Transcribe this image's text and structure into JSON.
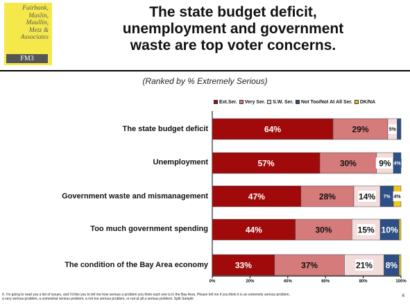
{
  "logo": {
    "lines": [
      "Fairbank,",
      "Maslin,",
      "Maullin,",
      "Metz &",
      "Associates"
    ],
    "tag": "FM3"
  },
  "title_lines": [
    "The state budget deficit,",
    "unemployment and government",
    "waste are top voter concerns."
  ],
  "subtitle": "(Ranked by % Extremely Serious)",
  "colors": {
    "ext_ser": "#a00a0a",
    "very_ser": "#d67b7b",
    "sw_ser": "#f3dcdc",
    "not_too": "#2d4f86",
    "dk_na": "#f2c61d"
  },
  "chart_data": {
    "type": "bar",
    "orientation": "horizontal",
    "stacked": true,
    "categories": [
      "The state budget deficit",
      "Unemployment",
      "Government waste and mismanagement",
      "Too much government spending",
      "The condition of the Bay Area economy"
    ],
    "series": [
      {
        "name": "Ext.Ser.",
        "values": [
          64,
          57,
          47,
          44,
          33
        ],
        "labels": [
          "64%",
          "57%",
          "47%",
          "44%",
          "33%"
        ]
      },
      {
        "name": "Very Ser.",
        "values": [
          29,
          30,
          28,
          30,
          37
        ],
        "labels": [
          "29%",
          "30%",
          "28%",
          "30%",
          "37%"
        ]
      },
      {
        "name": "S.W. Ser.",
        "values": [
          5,
          9,
          14,
          15,
          21
        ],
        "labels": [
          "5%",
          "9%",
          "14%",
          "15%",
          "21%"
        ]
      },
      {
        "name": "Not Too/Not At All Ser.",
        "values": [
          2,
          4,
          7,
          10,
          8
        ],
        "labels": [
          "",
          "4%",
          "7%",
          "10%",
          "8%"
        ]
      },
      {
        "name": "DK/NA",
        "values": [
          0,
          0,
          4,
          1,
          1
        ],
        "labels": [
          "",
          "",
          "4%",
          "",
          ""
        ]
      }
    ],
    "xlim": [
      0,
      100
    ],
    "xticks": [
      "0%",
      "20%",
      "40%",
      "60%",
      "80%",
      "100%"
    ],
    "legend_position": "top"
  },
  "footnote_lines": [
    "9. I’m going to read you a list of issues, and I’d like you to tell me how serious a problem you think each one is in the Bay Area.  Please tell me if you think it is an extremely serious problem,",
    "a very serious problem, a somewhat serious problem, a not too serious problem, or not at all a serious problem. Split Sample"
  ],
  "page_number": "6"
}
